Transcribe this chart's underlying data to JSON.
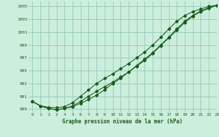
{
  "xlabel": "Graphe pression niveau de la mer (hPa)",
  "background_color": "#cceedd",
  "grid_color": "#99ccbb",
  "line_color": "#1a5c1a",
  "xlim": [
    -0.5,
    23
  ],
  "ylim": [
    988.5,
    1005.8
  ],
  "yticks": [
    989,
    991,
    993,
    995,
    997,
    999,
    1001,
    1003,
    1005
  ],
  "xticks": [
    0,
    1,
    2,
    3,
    4,
    5,
    6,
    7,
    8,
    9,
    10,
    11,
    12,
    13,
    14,
    15,
    16,
    17,
    18,
    19,
    20,
    21,
    22,
    23
  ],
  "series1": {
    "x": [
      0,
      1,
      2,
      3,
      4,
      5,
      6,
      7,
      8,
      9,
      10,
      11,
      12,
      13,
      14,
      15,
      16,
      17,
      18,
      19,
      20,
      21,
      22,
      23
    ],
    "y": [
      990.2,
      989.5,
      989.1,
      988.9,
      989.1,
      989.4,
      989.9,
      990.5,
      991.2,
      992.0,
      993.0,
      993.8,
      994.8,
      995.8,
      996.8,
      997.8,
      999.0,
      1000.2,
      1001.5,
      1002.7,
      1003.6,
      1004.3,
      1004.8,
      1005.2
    ]
  },
  "series2": {
    "x": [
      0,
      1,
      2,
      3,
      4,
      5,
      6,
      7,
      8,
      9,
      10,
      11,
      12,
      13,
      14,
      15,
      16,
      17,
      18,
      19,
      20,
      21,
      22,
      23
    ],
    "y": [
      990.2,
      989.5,
      989.1,
      988.9,
      989.1,
      989.5,
      990.2,
      991.0,
      991.8,
      992.5,
      993.2,
      994.0,
      994.8,
      995.7,
      996.6,
      997.7,
      998.9,
      1000.1,
      1001.3,
      1002.5,
      1003.5,
      1004.2,
      1004.7,
      1005.2
    ]
  },
  "series3": {
    "x": [
      0,
      1,
      2,
      3,
      4,
      5,
      6,
      7,
      8,
      9,
      10,
      11,
      12,
      13,
      14,
      15,
      16,
      17,
      18,
      19,
      20,
      21,
      22,
      23
    ],
    "y": [
      990.2,
      989.5,
      989.3,
      989.2,
      989.4,
      990.0,
      991.0,
      992.0,
      993.0,
      993.8,
      994.5,
      995.3,
      996.1,
      997.0,
      997.9,
      999.0,
      1000.2,
      1001.5,
      1002.7,
      1003.6,
      1004.2,
      1004.6,
      1005.0,
      1005.2
    ]
  }
}
